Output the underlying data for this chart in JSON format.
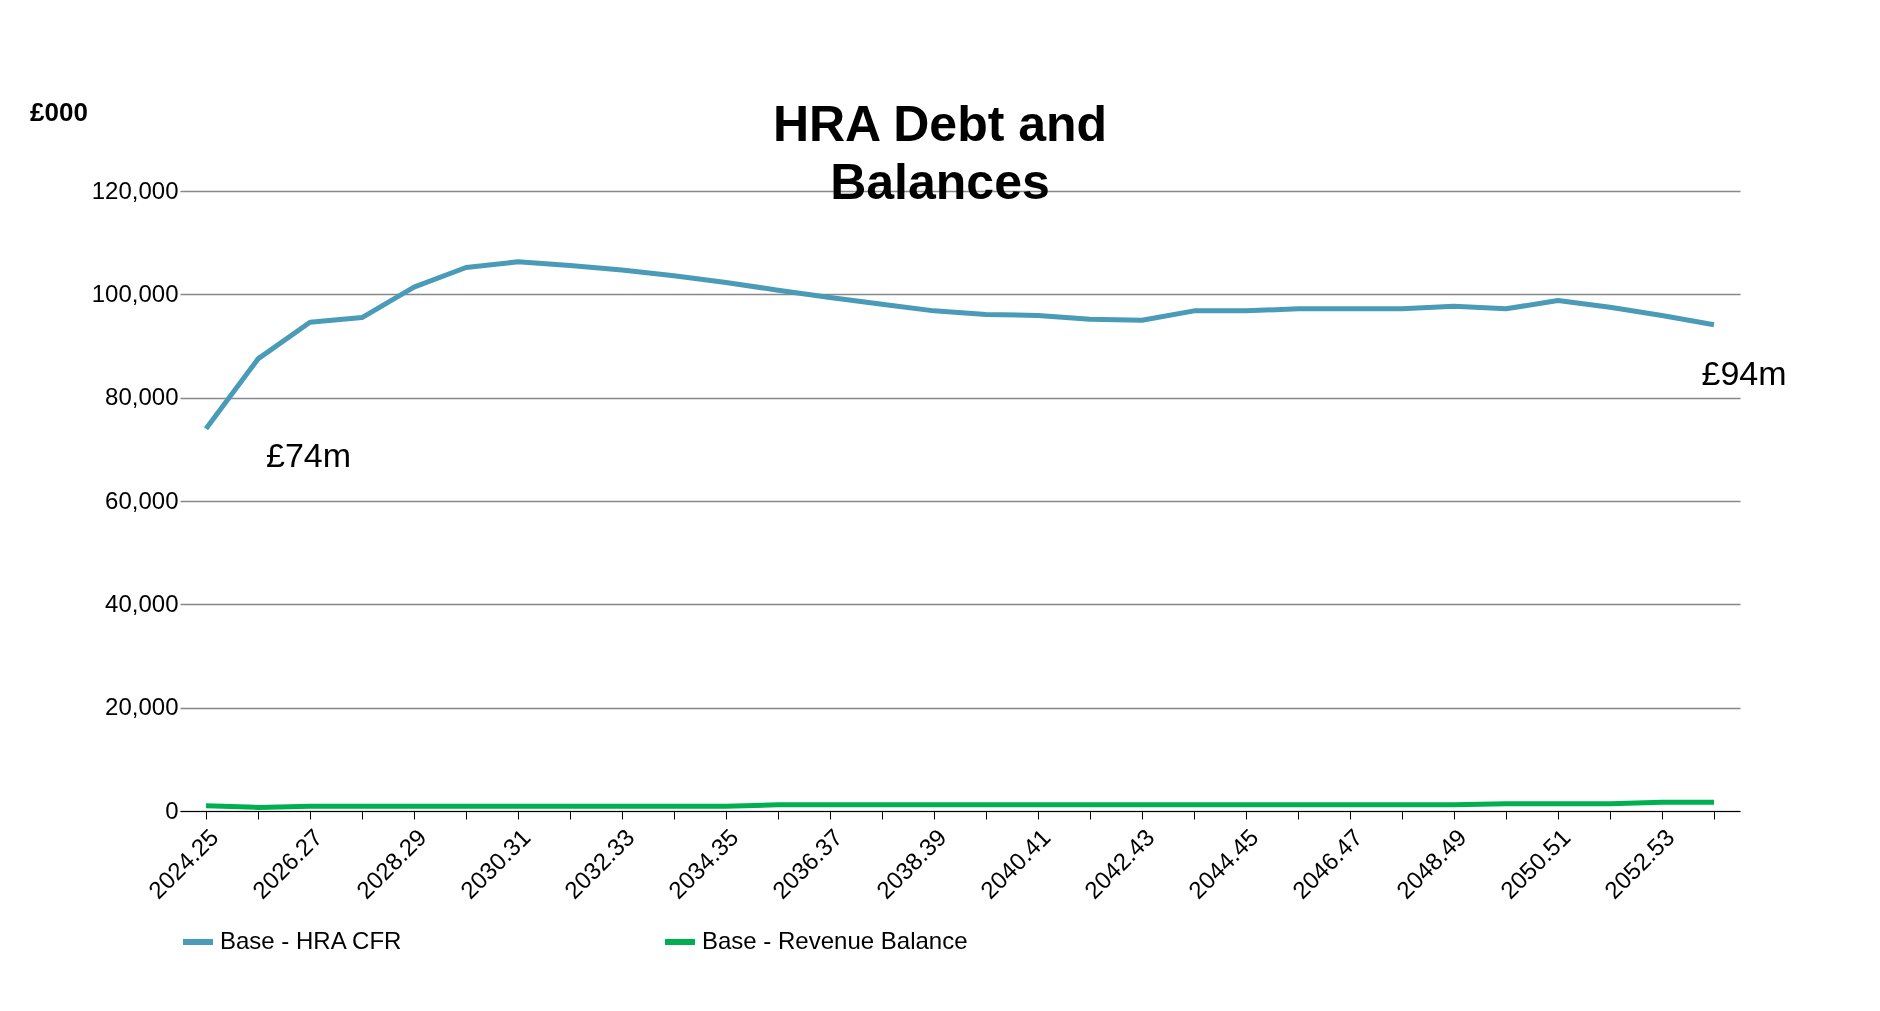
{
  "chart_data": {
    "type": "line",
    "title": "HRA Debt and Balances",
    "ylabel": "£000",
    "categories": [
      "2024.25",
      null,
      "2026.27",
      null,
      "2028.29",
      null,
      "2030.31",
      null,
      "2032.33",
      null,
      "2034.35",
      null,
      "2036.37",
      null,
      "2038.39",
      null,
      "2040.41",
      null,
      "2042.43",
      null,
      "2044.45",
      null,
      "2046.47",
      null,
      "2048.49",
      null,
      "2050.51",
      null,
      "2052.53",
      null
    ],
    "series": [
      {
        "name": "Base - HRA CFR",
        "color": "#4a9bb8",
        "values": [
          74000,
          87500,
          94600,
          95500,
          101400,
          105200,
          106300,
          105600,
          104700,
          103600,
          102300,
          100800,
          99400,
          98100,
          96800,
          96100,
          95900,
          95200,
          95000,
          96800,
          96800,
          97200,
          97200,
          97200,
          97700,
          97200,
          98800,
          97500,
          95900,
          94100
        ]
      },
      {
        "name": "Base - Revenue Balance",
        "color": "#00b050",
        "values": [
          1000,
          700,
          900,
          900,
          900,
          900,
          900,
          900,
          900,
          900,
          900,
          1200,
          1200,
          1200,
          1200,
          1200,
          1200,
          1200,
          1200,
          1200,
          1200,
          1200,
          1200,
          1200,
          1200,
          1400,
          1400,
          1400,
          1700,
          1700
        ]
      }
    ],
    "annotations": [
      {
        "text": "£74m",
        "x": "2024.25",
        "y": 74000
      },
      "£94m"
    ],
    "ylim": [
      0,
      120000
    ],
    "yticks": [
      0,
      {
        "value": 20000,
        "label": "20,000"
      },
      {
        "value": 40000,
        "label": "40,000"
      },
      {
        "value": 60000,
        "label": "60,000"
      },
      {
        "value": 80000,
        "label": "80,000"
      },
      {
        "value": 100000,
        "label": "100,000"
      },
      {
        "value": 120000,
        "label": "120,000"
      }
    ],
    "grid": "y",
    "legend": "bottom",
    "line_style": "solid",
    "marker": "none"
  }
}
